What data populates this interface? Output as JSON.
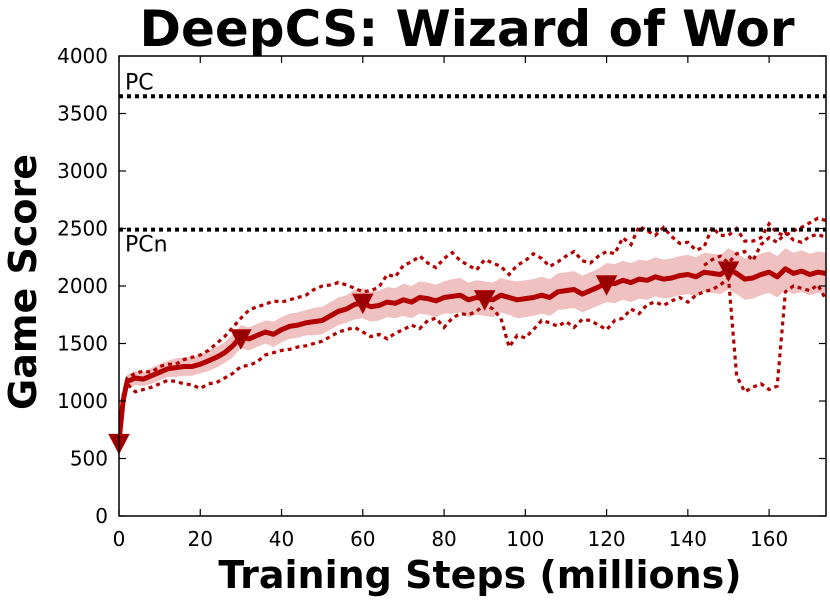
{
  "chart_data": {
    "type": "line",
    "title": "DeepCS: Wizard of Wor",
    "xlabel": "Training Steps (millions)",
    "ylabel": "Game Score",
    "xlim": [
      0,
      174
    ],
    "ylim": [
      0,
      4000
    ],
    "xticks": [
      0,
      20,
      40,
      60,
      80,
      100,
      120,
      140,
      160
    ],
    "yticks": [
      0,
      500,
      1000,
      1500,
      2000,
      2500,
      3000,
      3500,
      4000
    ],
    "grid": false,
    "colors": {
      "mean": "#b20000",
      "band": "#e8a6a6",
      "ref": "#000000",
      "marker": "#990000"
    },
    "reference_lines": [
      {
        "label": "PC",
        "value": 3650
      },
      {
        "label": "PCn",
        "value": 2490
      }
    ],
    "series": [
      {
        "style": "mean",
        "x": [
          0,
          1,
          2,
          4,
          6,
          8,
          10,
          12,
          14,
          16,
          18,
          20,
          22,
          24,
          26,
          28,
          30,
          32,
          34,
          36,
          38,
          40,
          42,
          44,
          46,
          48,
          50,
          52,
          54,
          56,
          58,
          60,
          62,
          64,
          66,
          68,
          70,
          72,
          74,
          76,
          78,
          80,
          82,
          84,
          86,
          88,
          90,
          92,
          94,
          96,
          98,
          100,
          102,
          104,
          106,
          108,
          110,
          112,
          114,
          116,
          118,
          120,
          122,
          124,
          126,
          128,
          130,
          132,
          134,
          136,
          138,
          140,
          142,
          144,
          146,
          148,
          150,
          152,
          154,
          156,
          158,
          160,
          162,
          164,
          166,
          168,
          170,
          172,
          174
        ],
        "y": [
          650,
          1000,
          1170,
          1200,
          1190,
          1220,
          1250,
          1280,
          1290,
          1300,
          1300,
          1320,
          1350,
          1380,
          1420,
          1480,
          1560,
          1540,
          1570,
          1600,
          1580,
          1620,
          1650,
          1660,
          1680,
          1690,
          1700,
          1740,
          1780,
          1800,
          1840,
          1850,
          1820,
          1830,
          1860,
          1850,
          1880,
          1860,
          1900,
          1890,
          1870,
          1900,
          1910,
          1920,
          1880,
          1900,
          1890,
          1880,
          1920,
          1900,
          1880,
          1890,
          1900,
          1920,
          1900,
          1950,
          1960,
          1970,
          1930,
          1960,
          1990,
          2030,
          2020,
          2050,
          2030,
          2060,
          2050,
          2080,
          2060,
          2070,
          2090,
          2100,
          2080,
          2120,
          2110,
          2100,
          2150,
          2110,
          2060,
          2070,
          2100,
          2120,
          2080,
          2150,
          2110,
          2130,
          2100,
          2120,
          2110
        ],
        "band": [
          30,
          50,
          60,
          60,
          60,
          70,
          70,
          70,
          80,
          80,
          80,
          80,
          90,
          90,
          90,
          100,
          100,
          100,
          100,
          100,
          110,
          110,
          110,
          110,
          110,
          120,
          120,
          120,
          120,
          120,
          130,
          130,
          130,
          130,
          130,
          130,
          140,
          140,
          140,
          140,
          140,
          140,
          150,
          150,
          150,
          150,
          150,
          150,
          150,
          150,
          160,
          160,
          160,
          160,
          160,
          160,
          160,
          160,
          160,
          160,
          160,
          170,
          170,
          170,
          170,
          170,
          170,
          170,
          170,
          170,
          170,
          170,
          170,
          170,
          170,
          170,
          180,
          180,
          180,
          180,
          180,
          180,
          180,
          180,
          180,
          180,
          180,
          180,
          180
        ]
      },
      {
        "style": "dotted-upper",
        "x": [
          0,
          1,
          2,
          4,
          6,
          8,
          10,
          12,
          14,
          16,
          18,
          20,
          22,
          24,
          26,
          28,
          30,
          32,
          34,
          36,
          38,
          40,
          42,
          44,
          46,
          48,
          50,
          52,
          54,
          56,
          58,
          60,
          62,
          64,
          66,
          68,
          70,
          72,
          74,
          76,
          78,
          80,
          82,
          84,
          86,
          88,
          90,
          92,
          94,
          96,
          98,
          100,
          102,
          104,
          106,
          108,
          110,
          112,
          114,
          116,
          118,
          120,
          122,
          124,
          126,
          128,
          130,
          132,
          134,
          136,
          138,
          140,
          142,
          144,
          146,
          148,
          150,
          152,
          154,
          156,
          158,
          160,
          162,
          164,
          166,
          168,
          170,
          172,
          174
        ],
        "y": [
          620,
          1050,
          1200,
          1240,
          1260,
          1250,
          1300,
          1320,
          1320,
          1360,
          1380,
          1400,
          1440,
          1500,
          1560,
          1640,
          1720,
          1790,
          1820,
          1840,
          1870,
          1860,
          1880,
          1900,
          1920,
          1970,
          2000,
          2010,
          2030,
          2010,
          1980,
          1950,
          1960,
          1990,
          2100,
          2080,
          2180,
          2210,
          2260,
          2200,
          2160,
          2240,
          2290,
          2220,
          2180,
          2140,
          2230,
          2200,
          2170,
          2100,
          2180,
          2220,
          2280,
          2240,
          2170,
          2210,
          2260,
          2300,
          2220,
          2200,
          2260,
          2300,
          2280,
          2420,
          2360,
          2520,
          2480,
          2440,
          2510,
          2430,
          2370,
          2380,
          2310,
          2340,
          2510,
          2440,
          2440,
          2500,
          2390,
          2390,
          2420,
          2540,
          2460,
          2440,
          2480,
          2510,
          2550,
          2590,
          2570
        ]
      },
      {
        "style": "dotted-lower",
        "x": [
          0,
          1,
          2,
          4,
          6,
          8,
          10,
          12,
          14,
          16,
          18,
          20,
          22,
          24,
          26,
          28,
          30,
          32,
          34,
          36,
          38,
          40,
          42,
          44,
          46,
          48,
          50,
          52,
          54,
          56,
          58,
          60,
          62,
          64,
          66,
          68,
          70,
          72,
          74,
          76,
          78,
          80,
          82,
          84,
          86,
          88,
          90,
          92,
          94,
          96,
          98,
          100,
          102,
          104,
          106,
          108,
          110,
          112,
          114,
          116,
          118,
          120,
          122,
          124,
          126,
          128,
          130,
          132,
          134,
          136,
          138,
          140,
          142,
          144,
          146,
          148,
          150,
          152,
          154,
          156,
          158,
          160,
          162,
          164,
          166,
          168,
          170,
          172,
          174
        ],
        "y": [
          680,
          980,
          1150,
          1080,
          1100,
          1120,
          1150,
          1180,
          1170,
          1150,
          1140,
          1110,
          1150,
          1160,
          1200,
          1240,
          1300,
          1310,
          1340,
          1400,
          1420,
          1440,
          1450,
          1470,
          1480,
          1500,
          1520,
          1560,
          1600,
          1620,
          1640,
          1600,
          1560,
          1580,
          1540,
          1590,
          1620,
          1660,
          1630,
          1700,
          1720,
          1640,
          1720,
          1760,
          1750,
          1780,
          1840,
          1800,
          1720,
          1470,
          1570,
          1550,
          1620,
          1700,
          1680,
          1650,
          1690,
          1640,
          1710,
          1700,
          1660,
          1620,
          1700,
          1720,
          1800,
          1760,
          1840,
          1860,
          1830,
          1870,
          1900,
          1860,
          1920,
          1950,
          1970,
          2010,
          2070,
          1220,
          1080,
          1120,
          1150,
          1100,
          1130,
          1950,
          2000,
          1980,
          1960,
          2010,
          1880
        ]
      },
      {
        "style": "dotted-third",
        "x": [
          144,
          146,
          148,
          150,
          152,
          154,
          156,
          158,
          160,
          162,
          164,
          166,
          168,
          170,
          172,
          174
        ],
        "y": [
          2180,
          2230,
          2260,
          2200,
          2280,
          2300,
          2220,
          2360,
          2420,
          2380,
          2460,
          2400,
          2380,
          2430,
          2450,
          2420
        ]
      }
    ],
    "markers": {
      "shape": "down-triangle",
      "x": [
        0,
        30,
        60,
        90,
        120,
        150
      ],
      "y": [
        640,
        1550,
        1860,
        1890,
        2020,
        2140
      ]
    }
  }
}
